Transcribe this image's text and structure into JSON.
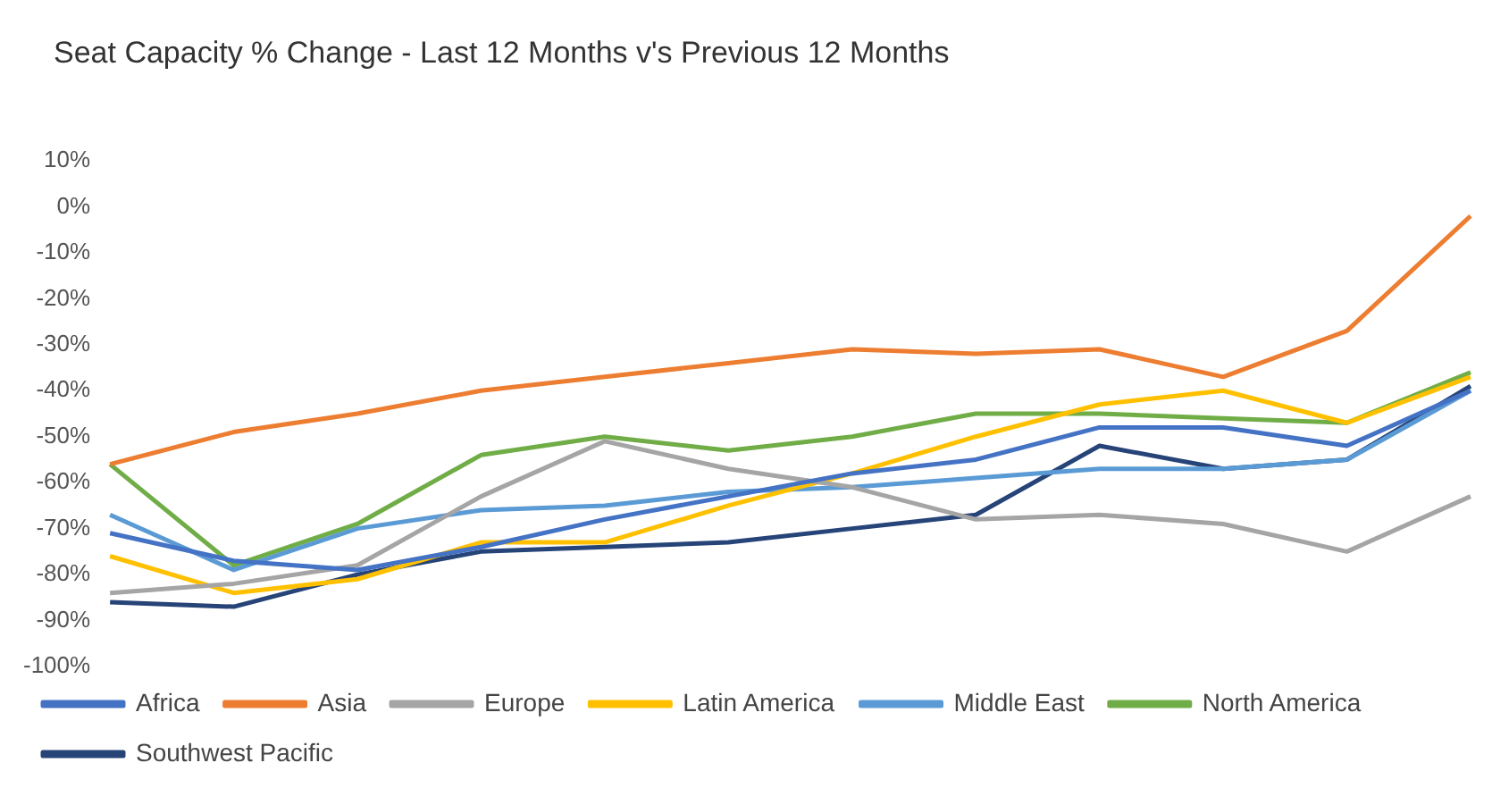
{
  "chart_data": {
    "type": "line",
    "title": "Seat Capacity % Change  - Last 12 Months v's Previous 12 Months",
    "categories": [
      null,
      null,
      null,
      null,
      null,
      null,
      null,
      null,
      null,
      null,
      null,
      null
    ],
    "series": [
      {
        "name": "Africa",
        "color": "#4472c4",
        "values": [
          -71,
          -77,
          -79,
          -74,
          -68,
          -63,
          -58,
          -55,
          -48,
          -48,
          -52,
          -40
        ]
      },
      {
        "name": "Asia",
        "color": "#ed7d31",
        "values": [
          -56,
          -49,
          -45,
          -40,
          -37,
          -34,
          -31,
          -32,
          -31,
          -37,
          -27,
          -2
        ]
      },
      {
        "name": "Europe",
        "color": "#a5a5a5",
        "values": [
          -84,
          -82,
          -78,
          -63,
          -51,
          -57,
          -61,
          -68,
          -67,
          -69,
          -75,
          -63
        ]
      },
      {
        "name": "Latin America",
        "color": "#ffc000",
        "values": [
          -76,
          -84,
          -81,
          -73,
          -73,
          -65,
          -58,
          -50,
          -43,
          -40,
          -47,
          -37
        ]
      },
      {
        "name": "Middle East",
        "color": "#5b9bd5",
        "values": [
          -67,
          -79,
          -70,
          -66,
          -65,
          -62,
          -61,
          -59,
          -57,
          -57,
          -55,
          -40
        ]
      },
      {
        "name": "North America",
        "color": "#70ad47",
        "values": [
          -56,
          -78,
          -69,
          -54,
          -50,
          -53,
          -50,
          -45,
          -45,
          -46,
          -47,
          -36
        ]
      },
      {
        "name": "Southwest Pacific",
        "color": "#264478",
        "values": [
          -86,
          -87,
          -80,
          -75,
          -74,
          -73,
          -70,
          -67,
          -52,
          -57,
          -55,
          -39
        ]
      }
    ],
    "ylim": [
      -100,
      10
    ],
    "yticks": [
      {
        "value": 10,
        "label": "10%"
      },
      {
        "value": 0,
        "label": "0%"
      },
      {
        "value": -10,
        "label": "-10%"
      },
      {
        "value": -20,
        "label": "-20%"
      },
      {
        "value": -30,
        "label": "-30%"
      },
      {
        "value": -40,
        "label": "-40%"
      },
      {
        "value": -50,
        "label": "-50%"
      },
      {
        "value": -60,
        "label": "-60%"
      },
      {
        "value": -70,
        "label": "-70%"
      },
      {
        "value": -80,
        "label": "-80%"
      },
      {
        "value": -90,
        "label": "-90%"
      },
      {
        "value": -100,
        "label": "-100%"
      }
    ],
    "tick_labels": "y",
    "grid": false,
    "legend": "bottom",
    "marker": "none",
    "line_style": "solid"
  }
}
